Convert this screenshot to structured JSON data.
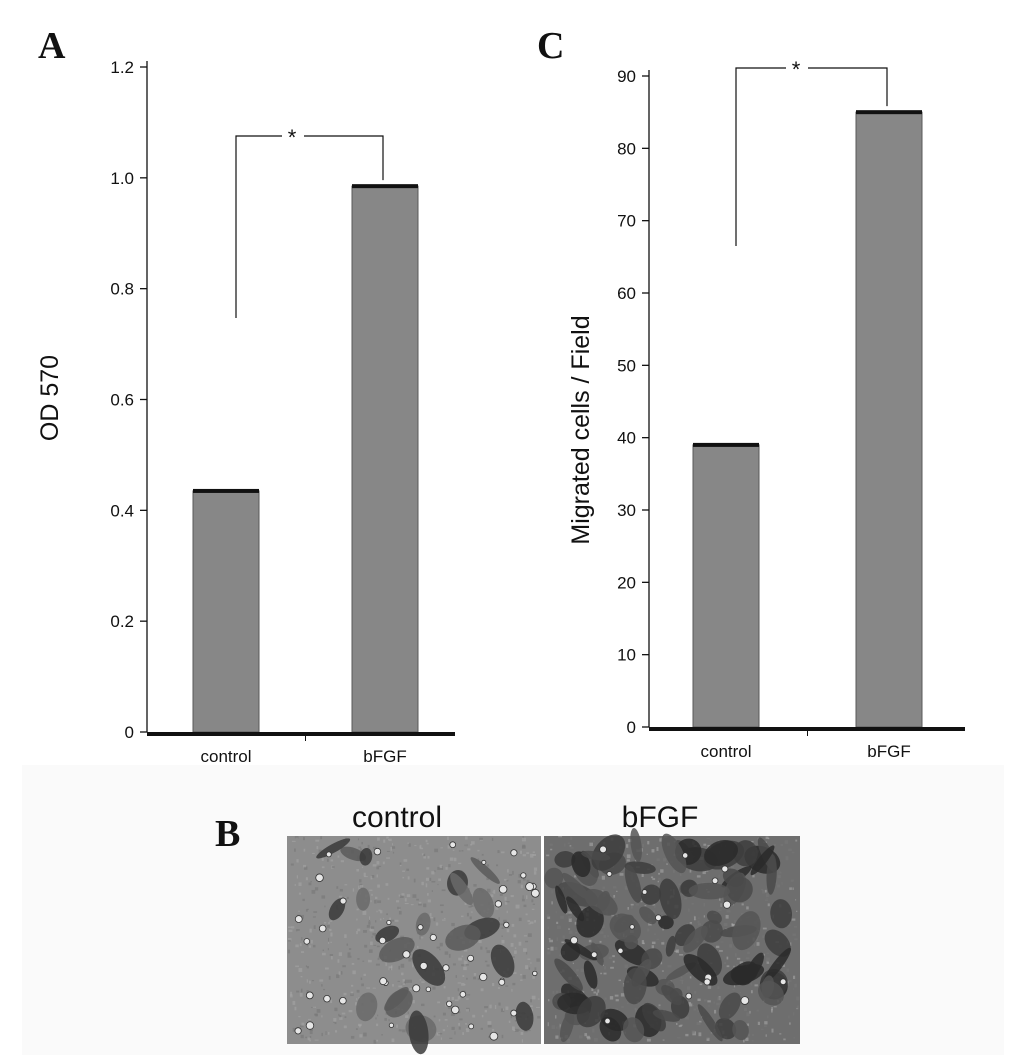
{
  "panel_letters": {
    "a": "A",
    "b": "B",
    "c": "C"
  },
  "colors": {
    "bar": "#878787",
    "bar_cap": "#111111",
    "axis": "#111111",
    "background": "#ffffff"
  },
  "chart_data": [
    {
      "panel": "A",
      "type": "bar",
      "categories": [
        "control",
        "bFGF"
      ],
      "values": [
        0.435,
        0.985
      ],
      "ylabel": "OD 570",
      "xlabel": "",
      "ylim": [
        0,
        1.2
      ],
      "yticks": [
        0,
        0.2,
        0.4,
        0.6,
        0.8,
        1.0,
        1.2
      ],
      "ytick_labels": [
        "0",
        "0.2",
        "0.4",
        "0.6",
        "0.8",
        "1.0",
        "1.2"
      ],
      "significance": {
        "label": "*",
        "between": [
          "control",
          "bFGF"
        ]
      },
      "grid": false
    },
    {
      "panel": "C",
      "type": "bar",
      "categories": [
        "control",
        "bFGF"
      ],
      "values": [
        39,
        85
      ],
      "ylabel": "Migrated cells / Field",
      "xlabel": "",
      "ylim": [
        0,
        90
      ],
      "yticks": [
        0,
        10,
        20,
        30,
        40,
        50,
        60,
        70,
        80,
        90
      ],
      "ytick_labels": [
        "0",
        "10",
        "20",
        "30",
        "40",
        "50",
        "60",
        "70",
        "80",
        "90"
      ],
      "significance": {
        "label": "*",
        "between": [
          "control",
          "bFGF"
        ]
      },
      "grid": false
    }
  ],
  "micrographs": {
    "panel": "B",
    "labels": [
      "control",
      "bFGF"
    ]
  }
}
